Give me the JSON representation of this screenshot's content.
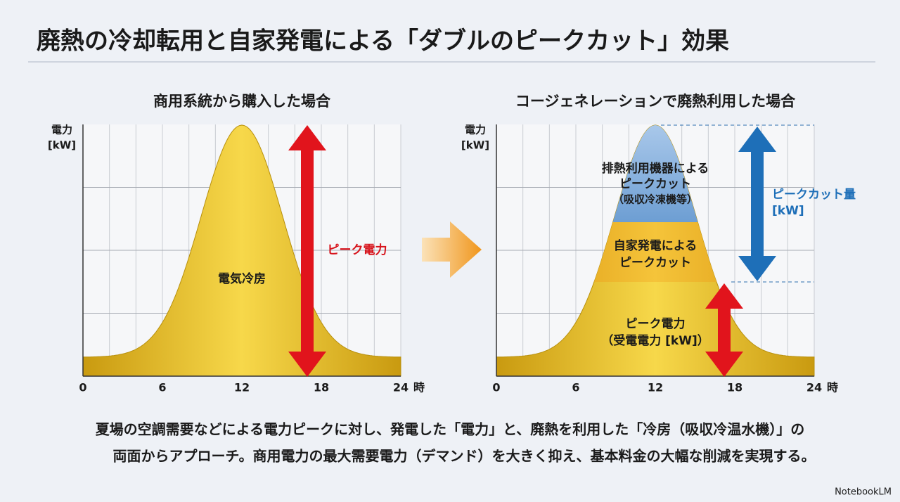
{
  "title": "廃熱の冷却転用と自家発電による「ダブルのピークカット」効果",
  "left": {
    "subtitle": "商用系統から購入した場合",
    "y_label": [
      "電力",
      "[kW]"
    ],
    "xticks": [
      0,
      6,
      12,
      18,
      24
    ],
    "x_unit": "時",
    "area_label": "電気冷房",
    "arrow_label": "ピーク電力"
  },
  "right": {
    "subtitle": "コージェネレーションで廃熱利用した場合",
    "y_label": [
      "電力",
      "[kW]"
    ],
    "xticks": [
      0,
      6,
      12,
      18,
      24
    ],
    "x_unit": "時",
    "top_label": [
      "排熱利用機器による",
      "ピークカット",
      "（吸収冷凍機等）"
    ],
    "middle_label": [
      "自家発電による",
      "ピークカット"
    ],
    "bottom_label": [
      "ピーク電力",
      "（受電電力 [kW]）"
    ],
    "cut_label": [
      "ピークカット量",
      "[kW]"
    ]
  },
  "footer": [
    "夏場の空調需要などによる電力ピークに対し、発電した「電力」と、廃熱を利用した「冷房（吸収冷温水機）」の",
    "両面からアプローチ。商用電力の最大需要電力（デマンド）を大きく抑え、基本料金の大幅な削減を実現する。"
  ],
  "brand": "NotebookLM"
}
